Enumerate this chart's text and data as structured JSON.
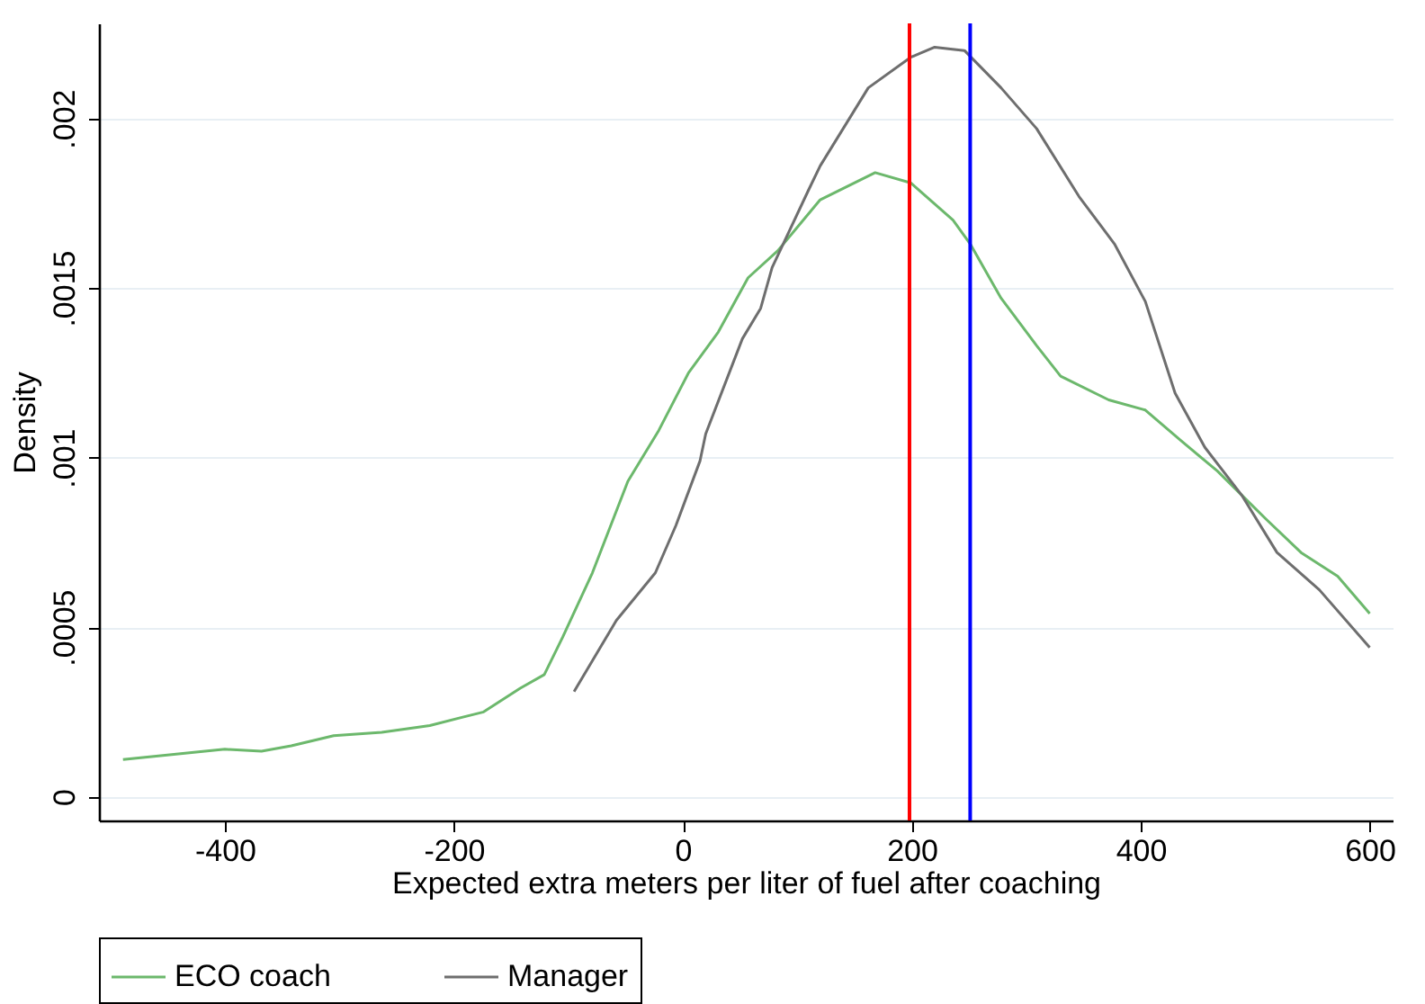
{
  "chart_data": {
    "type": "line",
    "xlabel": "Expected extra meters per liter of fuel after coaching",
    "ylabel": "Density",
    "xlim": [
      -510,
      620
    ],
    "ylim": [
      -7e-05,
      0.00228
    ],
    "xticks": [
      -400,
      -200,
      0,
      200,
      400,
      600
    ],
    "yticks": [
      0,
      {
        "value": 0.0005,
        "label": ".0005"
      },
      {
        "value": 0.001,
        "label": ".001"
      },
      {
        "value": 0.0015,
        "label": ".0015"
      },
      {
        "value": 0.002,
        "label": ".002"
      }
    ],
    "grid": "y",
    "legend": "bottom",
    "marker": "none",
    "line_style": "solid",
    "series": [
      {
        "name": "ECO coach",
        "color": "#6cb86c",
        "x": [
          -489,
          -400,
          -368,
          -342,
          -305,
          -263,
          -221,
          -174,
          -142,
          -121,
          -105,
          -79,
          -48,
          -21,
          5,
          31,
          57,
          83,
          120,
          168,
          199,
          236,
          251,
          278,
          309,
          330,
          372,
          404,
          435,
          467,
          488,
          509,
          540,
          572,
          600
        ],
        "values": [
          0.00011,
          0.00014,
          0.000134,
          0.00015,
          0.00018,
          0.00019,
          0.00021,
          0.00025,
          0.00032,
          0.00036,
          0.00047,
          0.00066,
          0.00093,
          0.00108,
          0.00125,
          0.00137,
          0.00153,
          0.00161,
          0.00176,
          0.00184,
          0.00181,
          0.0017,
          0.00163,
          0.00147,
          0.00133,
          0.00124,
          0.00117,
          0.00114,
          0.00105,
          0.00096,
          0.00089,
          0.00082,
          0.00072,
          0.00065,
          0.00054
        ]
      },
      {
        "name": "Manager",
        "color": "#6e6e6e",
        "x": [
          -95,
          -58,
          -24,
          -6,
          15,
          20,
          52,
          68,
          78,
          110,
          120,
          162,
          199,
          220,
          246,
          278,
          309,
          346,
          377,
          404,
          430,
          456,
          488,
          519,
          556,
          600
        ],
        "values": [
          0.00031,
          0.00052,
          0.00066,
          0.0008,
          0.00099,
          0.00107,
          0.00135,
          0.00144,
          0.00156,
          0.00179,
          0.00186,
          0.00209,
          0.00218,
          0.00221,
          0.0022,
          0.00209,
          0.00197,
          0.00177,
          0.00163,
          0.00146,
          0.00119,
          0.00103,
          0.00089,
          0.00072,
          0.00061,
          0.00044
        ]
      }
    ],
    "ref_lines": [
      {
        "axis": "x",
        "value": 198,
        "color": "#ff0000"
      },
      {
        "axis": "x",
        "value": 251,
        "color": "#0000ff"
      }
    ]
  }
}
